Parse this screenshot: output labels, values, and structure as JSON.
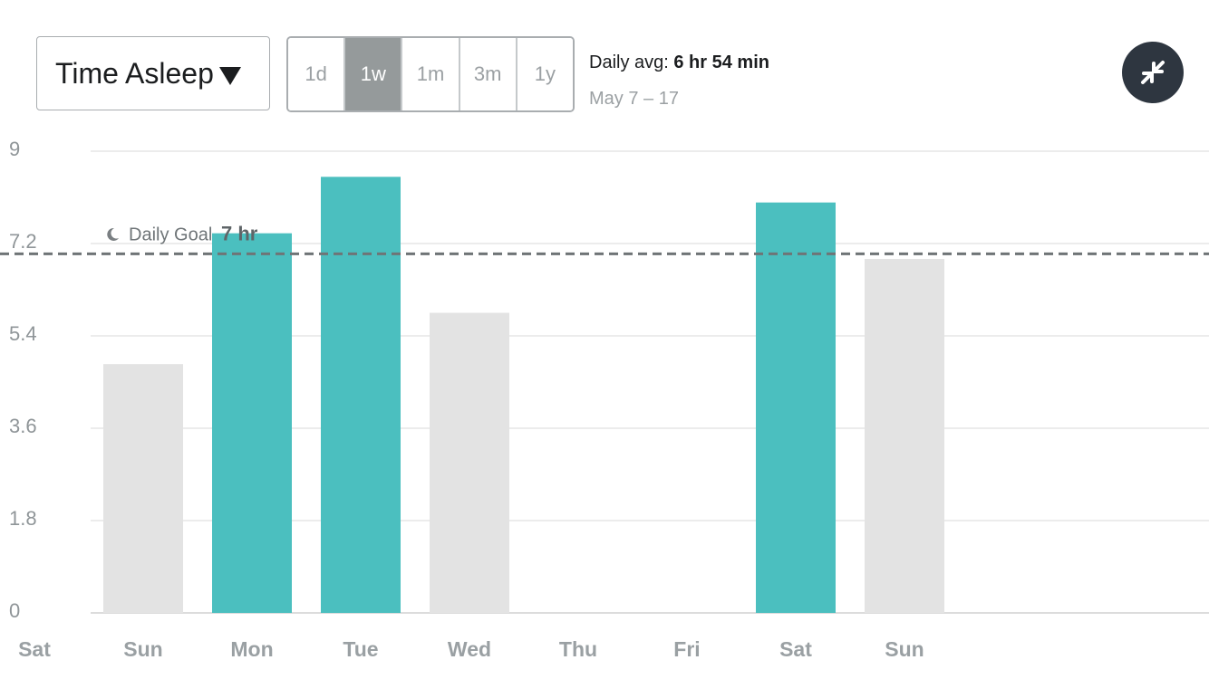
{
  "header": {
    "metric_label": "Time Asleep",
    "ranges": [
      "1d",
      "1w",
      "1m",
      "3m",
      "1y"
    ],
    "active_range": "1w",
    "avg_label": "Daily avg:",
    "avg_value": "6 hr 54 min",
    "date_range": "May 7 – 17",
    "collapse_icon": "collapse-arrows-icon"
  },
  "colors": {
    "met_goal": "#4bbfbf",
    "below_goal": "#e3e3e3",
    "goal_line": "#6f7476",
    "grid": "#ececec",
    "button_dark": "#2e3640"
  },
  "chart_data": {
    "type": "bar",
    "ylim": [
      0,
      9
    ],
    "y_ticks": [
      "0",
      "1.8",
      "3.6",
      "5.4",
      "7.2",
      "9"
    ],
    "categories": [
      "Sat",
      "Sun",
      "Mon",
      "Tue",
      "Wed",
      "Thu",
      "Fri",
      "Sat",
      "Sun"
    ],
    "values": [
      null,
      4.85,
      7.4,
      8.5,
      5.85,
      null,
      null,
      8.0,
      6.9
    ],
    "goal": {
      "value": 7,
      "label": "Daily Goal",
      "value_label": "7 hr",
      "icon": "moon-icon"
    },
    "grid": true
  }
}
